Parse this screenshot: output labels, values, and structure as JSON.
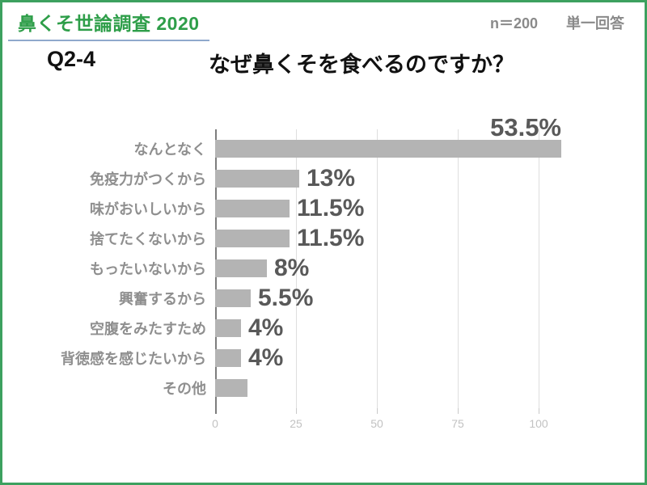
{
  "theme": {
    "border_green": "#3da15f",
    "title_green": "#2e9e49",
    "underline_blue": "#8fa9cc",
    "meta_gray": "#8a8a8a",
    "bar_gray": "#b4b4b4",
    "category_gray": "#8f8f8f",
    "value_gray": "#595959",
    "tick_gray": "#c2c2c2",
    "grid_gray": "#dedede",
    "axis_gray": "#7d7d7d"
  },
  "header": {
    "title": "鼻くそ世論調査 2020",
    "sample_size": "n＝200",
    "answer_type": "単一回答"
  },
  "question": {
    "number": "Q2-4",
    "text": "なぜ鼻くそを食べるのですか？"
  },
  "chart_data": {
    "type": "bar",
    "orientation": "horizontal",
    "title": "なぜ鼻くそを食べるのですか？",
    "categories": [
      "なんとなく",
      "免疫力がつくから",
      "味がおいしいから",
      "捨てたくないから",
      "もったいないから",
      "興奮するから",
      "空腹をみたすため",
      "背徳感を感じたいから",
      "その他"
    ],
    "values": [
      107,
      26,
      23,
      23,
      16,
      11,
      8,
      8,
      10
    ],
    "value_labels": [
      "53.5%",
      "13%",
      "11.5%",
      "11.5%",
      "8%",
      "5.5%",
      "4%",
      "4%",
      ""
    ],
    "value_label_placement": [
      "above",
      "right",
      "right",
      "right",
      "right",
      "right",
      "right",
      "right",
      "none"
    ],
    "x_ticks": [
      0,
      25,
      50,
      75,
      100
    ],
    "xlim": [
      0,
      110
    ],
    "xlabel": "",
    "ylabel": "",
    "grid": true,
    "legend": "none"
  }
}
